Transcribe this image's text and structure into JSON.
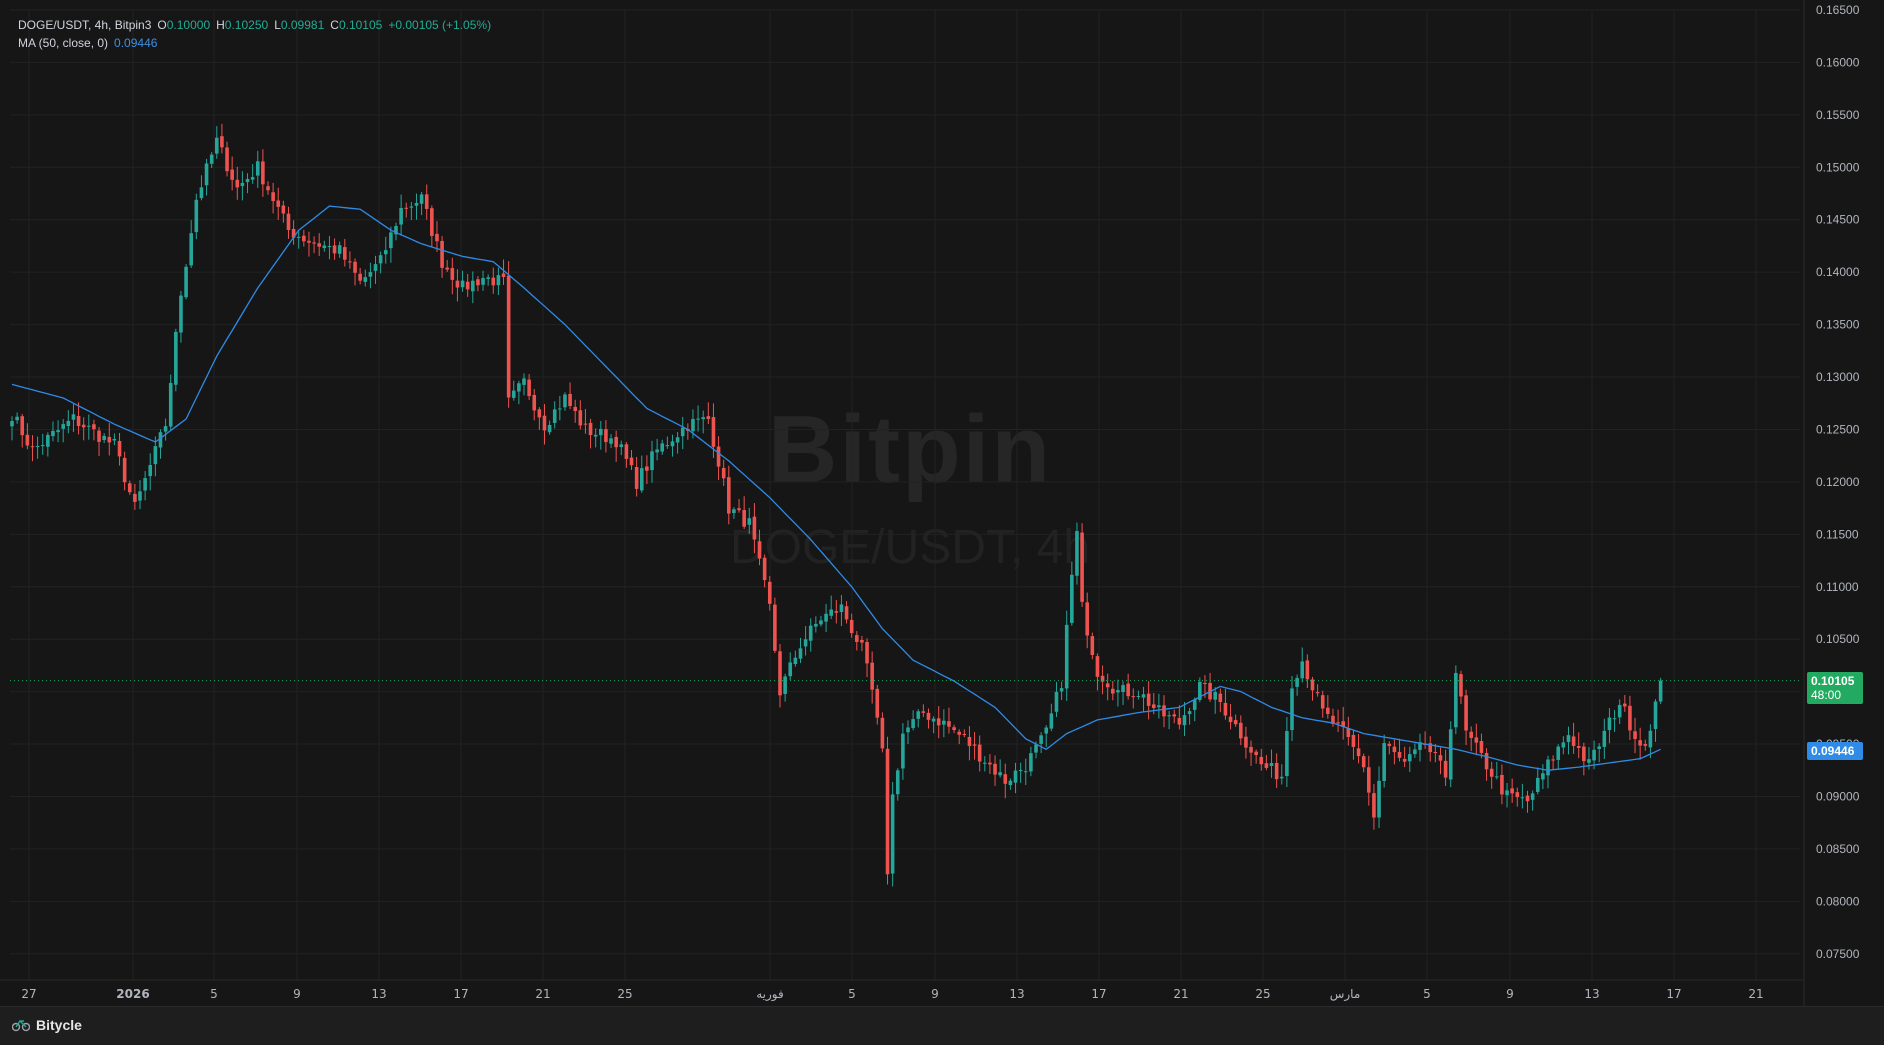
{
  "header": {
    "symbol": "DOGE/USDT, 4h, Bitpin3",
    "o_label": "O",
    "o_value": "0.10000",
    "h_label": "H",
    "h_value": "0.10250",
    "l_label": "L",
    "l_value": "0.09981",
    "c_label": "C",
    "c_value": "0.10105",
    "change": "+0.00105 (+1.05%)",
    "ma_label": "MA (50, close, 0)",
    "ma_value": "0.09446"
  },
  "watermark": {
    "name": "Bitpin",
    "pair": "DOGE/USDT, 4h"
  },
  "price_tags": {
    "last_price": "0.10105",
    "countdown": "48:00",
    "ma_price": "0.09446"
  },
  "footer": {
    "brand": "Bitycle"
  },
  "colors": {
    "up": "#26a69a",
    "down": "#ef5350",
    "ma": "#2f8be6",
    "grid": "#222222",
    "bg": "#161616"
  },
  "chart_data": {
    "type": "candlestick",
    "title": "DOGE/USDT, 4h, Bitpin3",
    "ylim": [
      0.0725,
      0.165
    ],
    "y_ticks": [
      "0.07500",
      "0.08000",
      "0.08500",
      "0.09000",
      "0.09500",
      "0.10000",
      "0.10500",
      "0.11000",
      "0.11500",
      "0.12000",
      "0.12500",
      "0.13000",
      "0.13500",
      "0.14000",
      "0.14500",
      "0.15000",
      "0.15500",
      "0.16000",
      "0.16500"
    ],
    "x_ticks": [
      "27",
      "2026",
      "5",
      "9",
      "13",
      "17",
      "21",
      "25",
      "فوریه",
      "5",
      "9",
      "13",
      "17",
      "21",
      "25",
      "مارس",
      "5",
      "9",
      "13",
      "17",
      "21"
    ],
    "grid": true,
    "series": [
      {
        "name": "DOGE/USDT",
        "kind": "close_path",
        "anchors": [
          [
            0,
            0.1265
          ],
          [
            4,
            0.123
          ],
          [
            12,
            0.126
          ],
          [
            20,
            0.1235
          ],
          [
            24,
            0.1175
          ],
          [
            30,
            0.1255
          ],
          [
            33,
            0.138
          ],
          [
            36,
            0.147
          ],
          [
            40,
            0.1525
          ],
          [
            44,
            0.148
          ],
          [
            48,
            0.15
          ],
          [
            54,
            0.144
          ],
          [
            58,
            0.143
          ],
          [
            64,
            0.142
          ],
          [
            68,
            0.139
          ],
          [
            72,
            0.141
          ],
          [
            76,
            0.146
          ],
          [
            80,
            0.147
          ],
          [
            84,
            0.141
          ],
          [
            88,
            0.1385
          ],
          [
            92,
            0.1395
          ],
          [
            96,
            0.139
          ],
          [
            97,
            0.1275
          ],
          [
            100,
            0.1295
          ],
          [
            104,
            0.1255
          ],
          [
            108,
            0.128
          ],
          [
            112,
            0.125
          ],
          [
            118,
            0.124
          ],
          [
            122,
            0.12
          ],
          [
            126,
            0.123
          ],
          [
            132,
            0.1255
          ],
          [
            136,
            0.126
          ],
          [
            138,
            0.122
          ],
          [
            140,
            0.1175
          ],
          [
            144,
            0.116
          ],
          [
            148,
            0.108
          ],
          [
            150,
            0.1
          ],
          [
            154,
            0.1045
          ],
          [
            158,
            0.107
          ],
          [
            162,
            0.108
          ],
          [
            166,
            0.104
          ],
          [
            168,
            0.1
          ],
          [
            170,
            0.094
          ],
          [
            171,
            0.083
          ],
          [
            172,
            0.09
          ],
          [
            174,
            0.096
          ],
          [
            178,
            0.098
          ],
          [
            182,
            0.097
          ],
          [
            186,
            0.0955
          ],
          [
            190,
            0.0935
          ],
          [
            194,
            0.0915
          ],
          [
            198,
            0.093
          ],
          [
            202,
            0.096
          ],
          [
            205,
            0.101
          ],
          [
            207,
            0.111
          ],
          [
            208,
            0.115
          ],
          [
            209,
            0.108
          ],
          [
            212,
            0.102
          ],
          [
            216,
            0.1
          ],
          [
            220,
            0.1
          ],
          [
            224,
            0.098
          ],
          [
            228,
            0.097
          ],
          [
            232,
            0.1005
          ],
          [
            236,
            0.099
          ],
          [
            240,
            0.096
          ],
          [
            244,
            0.093
          ],
          [
            248,
            0.092
          ],
          [
            250,
            0.101
          ],
          [
            252,
            0.103
          ],
          [
            256,
            0.098
          ],
          [
            260,
            0.096
          ],
          [
            264,
            0.093
          ],
          [
            266,
            0.088
          ],
          [
            268,
            0.095
          ],
          [
            272,
            0.093
          ],
          [
            276,
            0.095
          ],
          [
            280,
            0.092
          ],
          [
            282,
            0.102
          ],
          [
            284,
            0.096
          ],
          [
            288,
            0.093
          ],
          [
            292,
            0.09
          ],
          [
            296,
            0.0895
          ],
          [
            300,
            0.093
          ],
          [
            304,
            0.096
          ],
          [
            308,
            0.093
          ],
          [
            312,
            0.097
          ],
          [
            314,
            0.099
          ],
          [
            318,
            0.095
          ],
          [
            320,
            0.096
          ],
          [
            322,
            0.101
          ]
        ],
        "last_close": 0.10105
      },
      {
        "name": "MA (50, close, 0)",
        "kind": "line",
        "anchors": [
          [
            0,
            0.1293
          ],
          [
            10,
            0.128
          ],
          [
            20,
            0.1255
          ],
          [
            28,
            0.1238
          ],
          [
            34,
            0.126
          ],
          [
            40,
            0.132
          ],
          [
            48,
            0.1385
          ],
          [
            56,
            0.144
          ],
          [
            62,
            0.1463
          ],
          [
            68,
            0.146
          ],
          [
            74,
            0.144
          ],
          [
            80,
            0.1427
          ],
          [
            88,
            0.1415
          ],
          [
            94,
            0.141
          ],
          [
            100,
            0.1385
          ],
          [
            108,
            0.135
          ],
          [
            116,
            0.131
          ],
          [
            124,
            0.127
          ],
          [
            132,
            0.125
          ],
          [
            140,
            0.122
          ],
          [
            148,
            0.1185
          ],
          [
            156,
            0.1145
          ],
          [
            164,
            0.11
          ],
          [
            170,
            0.106
          ],
          [
            176,
            0.103
          ],
          [
            184,
            0.101
          ],
          [
            192,
            0.0985
          ],
          [
            198,
            0.0955
          ],
          [
            202,
            0.0945
          ],
          [
            206,
            0.096
          ],
          [
            212,
            0.0973
          ],
          [
            220,
            0.098
          ],
          [
            228,
            0.0985
          ],
          [
            232,
            0.0995
          ],
          [
            236,
            0.1005
          ],
          [
            240,
            0.1
          ],
          [
            246,
            0.0985
          ],
          [
            252,
            0.0975
          ],
          [
            258,
            0.097
          ],
          [
            264,
            0.096
          ],
          [
            270,
            0.0955
          ],
          [
            276,
            0.095
          ],
          [
            282,
            0.0945
          ],
          [
            288,
            0.0938
          ],
          [
            294,
            0.093
          ],
          [
            300,
            0.0925
          ],
          [
            306,
            0.0928
          ],
          [
            312,
            0.0932
          ],
          [
            318,
            0.0936
          ],
          [
            322,
            0.0945
          ]
        ]
      }
    ],
    "last_price": 0.10105,
    "ma_last": 0.09446
  }
}
